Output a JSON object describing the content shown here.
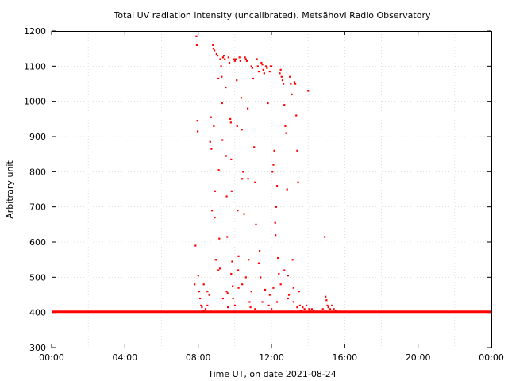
{
  "chart_data": {
    "type": "scatter",
    "title": "Total UV radiation intensity (uncalibrated). Metsähovi Radio Observatory",
    "xlabel": "Time UT, on date 2021-08-24",
    "ylabel": "Arbitrary unit",
    "xlim": [
      0,
      24
    ],
    "ylim": [
      300,
      1200
    ],
    "x_ticks": [
      {
        "value": 0,
        "label": "00:00"
      },
      {
        "value": 4,
        "label": "04:00"
      },
      {
        "value": 8,
        "label": "08:00"
      },
      {
        "value": 12,
        "label": "12:00"
      },
      {
        "value": 16,
        "label": "16:00"
      },
      {
        "value": 20,
        "label": "20:00"
      },
      {
        "value": 24,
        "label": "00:00"
      }
    ],
    "y_ticks": [
      300,
      400,
      500,
      600,
      700,
      800,
      900,
      1000,
      1100,
      1200
    ],
    "grid": true,
    "color": "#ff0000",
    "baseline": {
      "x_start": 0,
      "x_end": 24,
      "y": 402
    },
    "points": [
      [
        7.8,
        480
      ],
      [
        7.85,
        590
      ],
      [
        7.9,
        1185
      ],
      [
        7.92,
        1160
      ],
      [
        7.95,
        945
      ],
      [
        7.97,
        915
      ],
      [
        8.0,
        505
      ],
      [
        8.05,
        460
      ],
      [
        8.1,
        440
      ],
      [
        8.15,
        420
      ],
      [
        8.2,
        415
      ],
      [
        8.3,
        405
      ],
      [
        8.4,
        410
      ],
      [
        8.5,
        420
      ],
      [
        8.6,
        450
      ],
      [
        8.65,
        885
      ],
      [
        8.7,
        955
      ],
      [
        8.72,
        865
      ],
      [
        8.75,
        690
      ],
      [
        8.8,
        1160
      ],
      [
        8.83,
        1150
      ],
      [
        8.85,
        930
      ],
      [
        8.88,
        1145
      ],
      [
        8.9,
        670
      ],
      [
        8.92,
        745
      ],
      [
        8.95,
        550
      ],
      [
        9.0,
        1135
      ],
      [
        9.05,
        1130
      ],
      [
        9.1,
        1065
      ],
      [
        9.12,
        805
      ],
      [
        9.15,
        610
      ],
      [
        9.18,
        525
      ],
      [
        9.2,
        1120
      ],
      [
        9.25,
        1100
      ],
      [
        9.28,
        1070
      ],
      [
        9.3,
        995
      ],
      [
        9.32,
        890
      ],
      [
        9.35,
        1125
      ],
      [
        9.4,
        1130
      ],
      [
        9.45,
        1120
      ],
      [
        9.5,
        1040
      ],
      [
        9.52,
        845
      ],
      [
        9.55,
        730
      ],
      [
        9.58,
        615
      ],
      [
        9.6,
        455
      ],
      [
        9.62,
        415
      ],
      [
        9.65,
        1125
      ],
      [
        9.7,
        1110
      ],
      [
        9.75,
        950
      ],
      [
        9.78,
        940
      ],
      [
        9.8,
        835
      ],
      [
        9.82,
        745
      ],
      [
        9.85,
        545
      ],
      [
        9.88,
        475
      ],
      [
        9.9,
        440
      ],
      [
        9.95,
        1120
      ],
      [
        10.0,
        1115
      ],
      [
        10.05,
        1120
      ],
      [
        10.1,
        1060
      ],
      [
        10.12,
        930
      ],
      [
        10.15,
        690
      ],
      [
        10.18,
        520
      ],
      [
        10.2,
        470
      ],
      [
        10.25,
        1125
      ],
      [
        10.3,
        1115
      ],
      [
        10.35,
        1010
      ],
      [
        10.38,
        920
      ],
      [
        10.4,
        780
      ],
      [
        10.45,
        800
      ],
      [
        10.5,
        680
      ],
      [
        10.55,
        1125
      ],
      [
        10.6,
        1120
      ],
      [
        10.65,
        1115
      ],
      [
        10.7,
        980
      ],
      [
        10.72,
        780
      ],
      [
        10.75,
        550
      ],
      [
        10.8,
        430
      ],
      [
        10.85,
        415
      ],
      [
        10.9,
        1100
      ],
      [
        10.95,
        1095
      ],
      [
        11.0,
        1065
      ],
      [
        11.05,
        870
      ],
      [
        11.1,
        770
      ],
      [
        11.15,
        650
      ],
      [
        11.2,
        1120
      ],
      [
        11.25,
        1100
      ],
      [
        11.3,
        1085
      ],
      [
        11.35,
        575
      ],
      [
        11.4,
        500
      ],
      [
        11.45,
        1110
      ],
      [
        11.5,
        1105
      ],
      [
        11.55,
        1090
      ],
      [
        11.6,
        1080
      ],
      [
        11.65,
        465
      ],
      [
        11.7,
        1100
      ],
      [
        11.75,
        1095
      ],
      [
        11.8,
        995
      ],
      [
        11.85,
        420
      ],
      [
        11.9,
        1085
      ],
      [
        11.95,
        1100
      ],
      [
        12.0,
        1100
      ],
      [
        12.05,
        800
      ],
      [
        12.1,
        820
      ],
      [
        12.15,
        860
      ],
      [
        12.2,
        655
      ],
      [
        12.22,
        620
      ],
      [
        12.25,
        700
      ],
      [
        12.3,
        760
      ],
      [
        12.35,
        555
      ],
      [
        12.4,
        510
      ],
      [
        12.45,
        1080
      ],
      [
        12.5,
        1090
      ],
      [
        12.55,
        1070
      ],
      [
        12.6,
        1060
      ],
      [
        12.65,
        1050
      ],
      [
        12.7,
        990
      ],
      [
        12.75,
        930
      ],
      [
        12.8,
        910
      ],
      [
        12.85,
        750
      ],
      [
        12.9,
        505
      ],
      [
        12.95,
        450
      ],
      [
        13.0,
        1070
      ],
      [
        13.05,
        1050
      ],
      [
        13.1,
        1020
      ],
      [
        13.15,
        550
      ],
      [
        13.2,
        470
      ],
      [
        13.25,
        1055
      ],
      [
        13.3,
        1050
      ],
      [
        13.35,
        960
      ],
      [
        13.4,
        860
      ],
      [
        13.45,
        770
      ],
      [
        13.5,
        460
      ],
      [
        13.55,
        420
      ],
      [
        13.6,
        405
      ],
      [
        13.7,
        415
      ],
      [
        13.8,
        410
      ],
      [
        13.9,
        420
      ],
      [
        14.0,
        1030
      ],
      [
        14.05,
        410
      ],
      [
        14.1,
        405
      ],
      [
        14.2,
        410
      ],
      [
        14.3,
        405
      ],
      [
        14.5,
        403
      ],
      [
        14.8,
        410
      ],
      [
        14.9,
        615
      ],
      [
        14.95,
        445
      ],
      [
        15.0,
        435
      ],
      [
        15.05,
        420
      ],
      [
        15.1,
        415
      ],
      [
        15.2,
        410
      ],
      [
        15.3,
        420
      ],
      [
        15.4,
        410
      ],
      [
        15.5,
        405
      ],
      [
        8.3,
        480
      ],
      [
        8.5,
        460
      ],
      [
        9.0,
        550
      ],
      [
        9.1,
        520
      ],
      [
        9.35,
        440
      ],
      [
        9.55,
        460
      ],
      [
        10.2,
        560
      ],
      [
        10.4,
        480
      ],
      [
        10.6,
        500
      ],
      [
        10.9,
        460
      ],
      [
        11.3,
        540
      ],
      [
        11.5,
        430
      ],
      [
        11.9,
        450
      ],
      [
        12.1,
        470
      ],
      [
        12.3,
        430
      ],
      [
        12.5,
        480
      ],
      [
        12.7,
        520
      ],
      [
        12.9,
        440
      ],
      [
        13.2,
        430
      ],
      [
        13.4,
        415
      ],
      [
        9.8,
        510
      ],
      [
        10.0,
        420
      ],
      [
        11.1,
        410
      ],
      [
        12.0,
        410
      ]
    ]
  }
}
